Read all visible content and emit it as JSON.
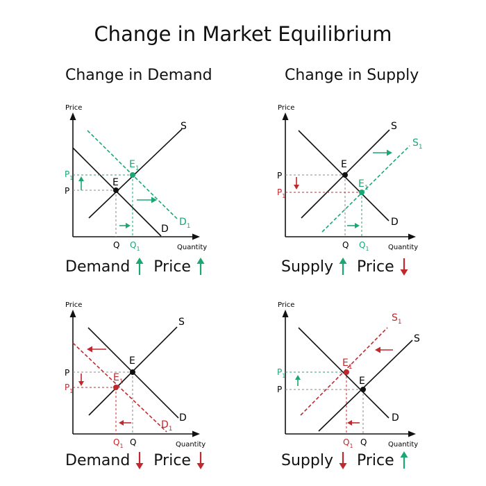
{
  "title": "Change in Market Equilibrium",
  "colors": {
    "black": "#111111",
    "green": "#1aa772",
    "red": "#c0282d",
    "gray": "#888888"
  },
  "sections": {
    "demand": "Change in Demand",
    "supply": "Change in Supply"
  },
  "axis": {
    "y_label": "Price",
    "x_label": "Quantity"
  },
  "panels": [
    {
      "name": "demand-increase",
      "lines": {
        "S": "S",
        "D": "D",
        "D1": "D",
        "D1_sub": "1"
      },
      "points": {
        "E": "E",
        "E1": "E",
        "E1_sub": "1"
      },
      "ticks": {
        "P": "P",
        "P1": "P",
        "P1_sub": "1",
        "Q": "Q",
        "Q1": "Q",
        "Q1_sub": "1"
      },
      "summary": {
        "left": "Demand",
        "left_dir": "up",
        "right": "Price",
        "right_dir": "up"
      }
    },
    {
      "name": "supply-increase",
      "lines": {
        "S": "S",
        "D": "D",
        "S1": "S",
        "S1_sub": "1"
      },
      "points": {
        "E": "E",
        "E1": "E",
        "E1_sub": "1"
      },
      "ticks": {
        "P": "P",
        "P1": "P",
        "P1_sub": "1",
        "Q": "Q",
        "Q1": "Q",
        "Q1_sub": "1"
      },
      "summary": {
        "left": "Supply",
        "left_dir": "up",
        "right": "Price",
        "right_dir": "down"
      }
    },
    {
      "name": "demand-decrease",
      "lines": {
        "S": "S",
        "D": "D",
        "D1": "D",
        "D1_sub": "1"
      },
      "points": {
        "E": "E",
        "E1": "E",
        "E1_sub": "1"
      },
      "ticks": {
        "P": "P",
        "P1": "P",
        "P1_sub": "1",
        "Q": "Q",
        "Q1": "Q",
        "Q1_sub": "1"
      },
      "summary": {
        "left": "Demand",
        "left_dir": "down",
        "right": "Price",
        "right_dir": "down"
      }
    },
    {
      "name": "supply-decrease",
      "lines": {
        "S": "S",
        "D": "D",
        "S1": "S",
        "S1_sub": "1"
      },
      "points": {
        "E": "E",
        "E1": "E",
        "E1_sub": "1"
      },
      "ticks": {
        "P": "P",
        "P1": "P",
        "P1_sub": "1",
        "Q": "Q",
        "Q1": "Q",
        "Q1_sub": "1"
      },
      "summary": {
        "left": "Supply",
        "left_dir": "down",
        "right": "Price",
        "right_dir": "up"
      }
    }
  ]
}
